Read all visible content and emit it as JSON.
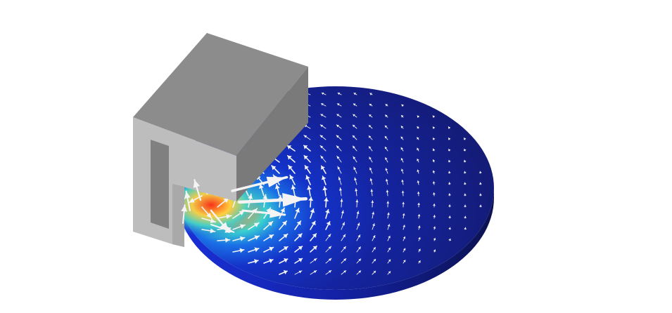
{
  "scene": {
    "background": "#ffffff",
    "colors": {
      "magnet_top": "#8c8c8c",
      "magnet_side": "#7a7a7a",
      "magnet_front": "#bdbdbd",
      "magnet_slot": "#808080",
      "disc_dark": "#121c6e",
      "disc_mid": "#1528b8",
      "disc_edge": "#0e1670",
      "hot_red": "#d42a12",
      "hot_yellow": "#f2e33a",
      "hot_cyan": "#39c6d8",
      "arrow": "#f4f4f4"
    },
    "objects": [
      "magnet-block",
      "conducting-disc",
      "current-density-arrows"
    ]
  }
}
